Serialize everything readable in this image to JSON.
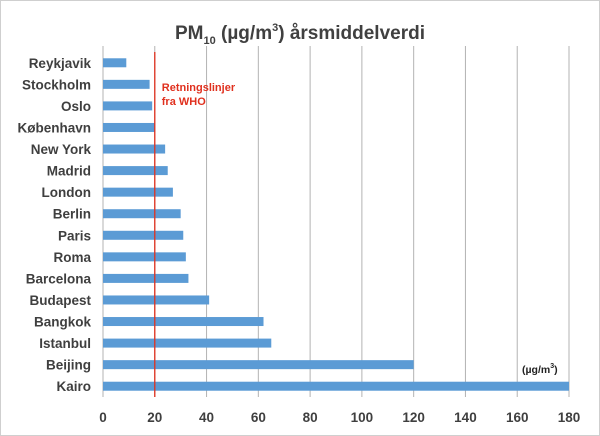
{
  "chart_data": {
    "type": "bar",
    "orientation": "horizontal",
    "title": {
      "main": "PM",
      "sub": "10",
      "rest_before_sup": " (µg/m",
      "sup": "3",
      "rest_after_sup": ") årsmiddelverdi"
    },
    "categories": [
      "Reykjavik",
      "Stockholm",
      "Oslo",
      "København",
      "New York",
      "Madrid",
      "London",
      "Berlin",
      "Paris",
      "Roma",
      "Barcelona",
      "Budapest",
      "Bangkok",
      "Istanbul",
      "Beijing",
      "Kairo"
    ],
    "values": [
      9,
      18,
      19,
      20,
      24,
      25,
      27,
      30,
      31,
      32,
      33,
      41,
      62,
      65,
      120,
      180
    ],
    "xlim": [
      0,
      180
    ],
    "xticks": [
      "0",
      "20",
      "40",
      "60",
      "80",
      "100",
      "120",
      "140",
      "160",
      "180"
    ],
    "grid": true,
    "reference_line": {
      "value": 20,
      "label_line1": "Retningslinjer",
      "label_line2": "fra WHO",
      "color": "#e0301e"
    },
    "unit_label": {
      "text": "(µg/m",
      "sup": "3",
      "close": ")"
    },
    "colors": {
      "bar": "#5b9bd5",
      "grid": "#b3b3b3",
      "axis_text": "#3f3f3f",
      "title": "#404040"
    }
  }
}
